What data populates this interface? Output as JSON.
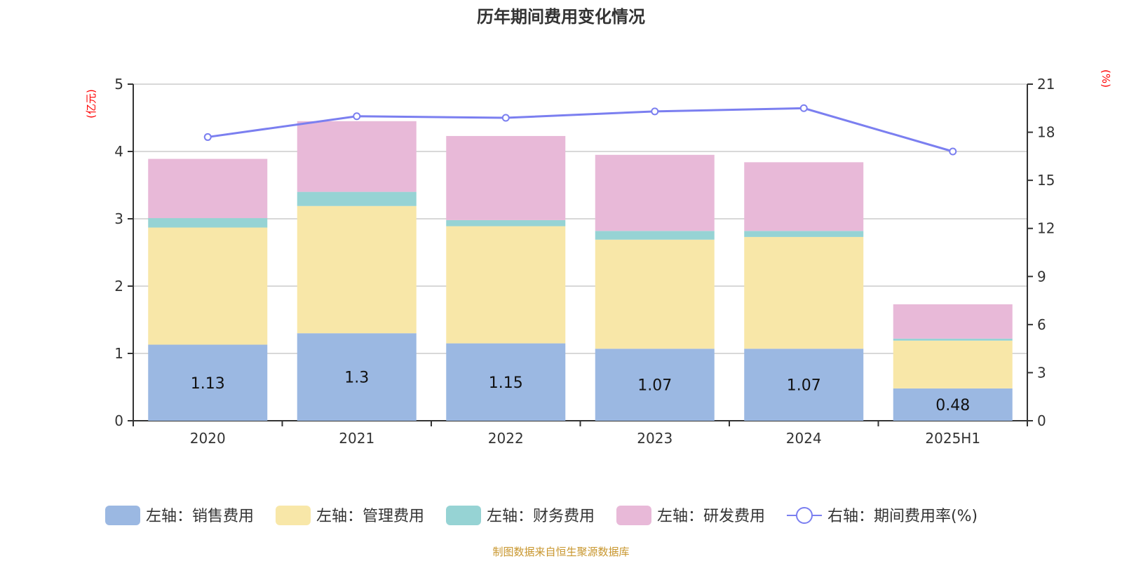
{
  "chart_data": {
    "type": "bar",
    "title": "历年期间费用变化情况",
    "categories": [
      "2020",
      "2021",
      "2022",
      "2023",
      "2024",
      "2025H1"
    ],
    "left_axis": {
      "unit": "(亿元)",
      "range": [
        0,
        5
      ],
      "ticks": [
        "0",
        "1",
        "2",
        "3",
        "4",
        "5"
      ]
    },
    "right_axis": {
      "unit": "(%)",
      "range": [
        0,
        21
      ],
      "ticks": [
        "0",
        "3",
        "6",
        "9",
        "12",
        "15",
        "18",
        "21"
      ]
    },
    "grid": true,
    "legend_position": "bottom",
    "series": [
      {
        "name": "左轴：销售费用",
        "type": "bar",
        "stack": true,
        "color": "#9bb8e2",
        "values": [
          1.13,
          1.3,
          1.15,
          1.07,
          1.07,
          0.48
        ],
        "labels": [
          "1.13",
          "1.3",
          "1.15",
          "1.07",
          "1.07",
          "0.48"
        ]
      },
      {
        "name": "左轴：管理费用",
        "type": "bar",
        "stack": true,
        "color": "#f8e7a8",
        "values": [
          1.74,
          1.89,
          1.74,
          1.62,
          1.66,
          0.71
        ]
      },
      {
        "name": "左轴：财务费用",
        "type": "bar",
        "stack": true,
        "color": "#96d3d4",
        "values": [
          0.14,
          0.21,
          0.09,
          0.13,
          0.09,
          0.03
        ]
      },
      {
        "name": "左轴：研发费用",
        "type": "bar",
        "stack": true,
        "color": "#e8b9d8",
        "values": [
          0.88,
          1.05,
          1.25,
          1.13,
          1.02,
          0.51
        ]
      },
      {
        "name": "右轴：期间费用率(%)",
        "type": "line",
        "axis": "right",
        "color": "#7b7ff0",
        "values": [
          17.7,
          19.0,
          18.9,
          19.3,
          19.5,
          16.8
        ]
      }
    ]
  },
  "footer": {
    "source": "制图数据来自恒生聚源数据库"
  }
}
